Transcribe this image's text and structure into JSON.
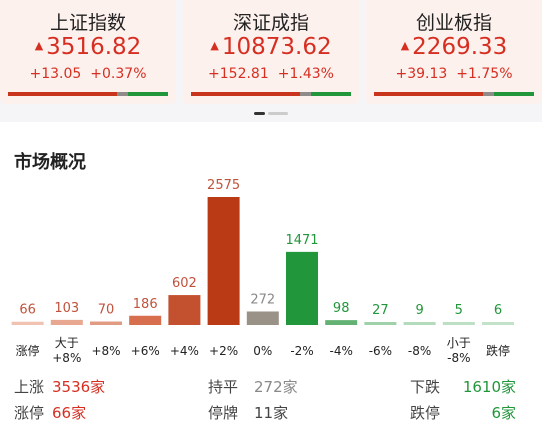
{
  "indices": [
    {
      "name": "上证指数",
      "price": "3516.82",
      "change": "+13.05",
      "percent": "+0.37%"
    },
    {
      "name": "深证成指",
      "price": "10873.62",
      "change": "+152.81",
      "percent": "+1.43%"
    },
    {
      "name": "创业板指",
      "price": "2269.33",
      "change": "+39.13",
      "percent": "+1.75%"
    }
  ],
  "colors": {
    "up": "#d62f22",
    "down": "#21963b",
    "flat": "#8f8b88"
  },
  "overview": {
    "title": "市场概况",
    "up_label": "上涨",
    "up_value": "3536家",
    "flat_label": "持平",
    "flat_value": "272家",
    "down_label": "下跌",
    "down_value": "1610家",
    "limit_up_label": "涨停",
    "limit_up_value": "66家",
    "suspended_label": "停牌",
    "suspended_value": "11家",
    "limit_down_label": "跌停",
    "limit_down_value": "6家"
  },
  "chart_data": {
    "type": "bar",
    "categories": [
      "涨停",
      "大于\n+8%",
      "+8%",
      "+6%",
      "+4%",
      "+2%",
      "0%",
      "-2%",
      "-4%",
      "-6%",
      "-8%",
      "小于\n-8%",
      "跌停"
    ],
    "values": [
      66,
      103,
      70,
      186,
      602,
      2575,
      272,
      1471,
      98,
      27,
      9,
      5,
      6
    ],
    "bar_colors": [
      "#efc2b2",
      "#e7a791",
      "#e19b82",
      "#d76e4d",
      "#c3512f",
      "#bb3a16",
      "#9b9287",
      "#21963b",
      "#63b274",
      "#9fd1aa",
      "#b5dbbd",
      "#bde0c4",
      "#c3e2c9"
    ],
    "label_colors": [
      "#c0533c",
      "#c0533c",
      "#c0533c",
      "#c0533c",
      "#c0533c",
      "#c0533c",
      "#8a8a8a",
      "#21963b",
      "#21963b",
      "#21963b",
      "#21963b",
      "#21963b",
      "#21963b"
    ]
  }
}
